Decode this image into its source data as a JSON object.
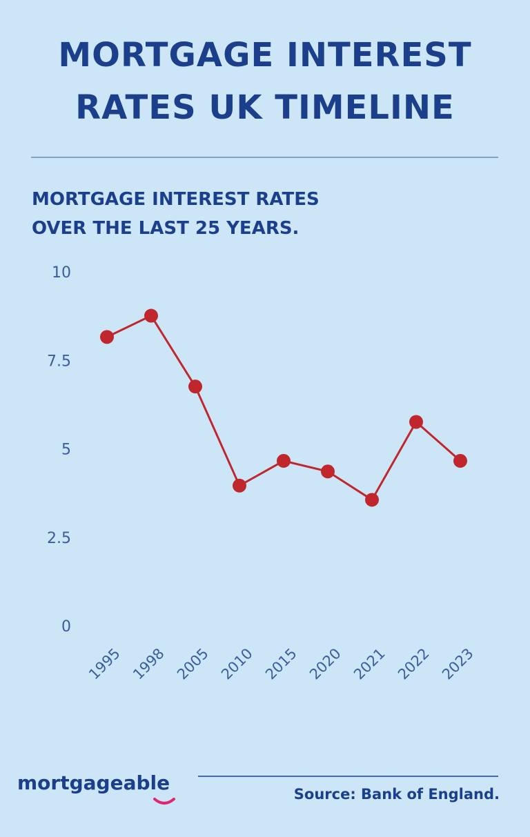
{
  "header": {
    "title": "MORTGAGE INTEREST RATES UK TIMELINE"
  },
  "chart_data": {
    "type": "line",
    "title": "MORTGAGE INTEREST RATES OVER THE LAST 25 YEARS.",
    "categories": [
      "1995",
      "1998",
      "2005",
      "2010",
      "2015",
      "2020",
      "2021",
      "2022",
      "2023"
    ],
    "values": [
      8.2,
      8.8,
      6.8,
      4.0,
      4.7,
      4.4,
      3.6,
      5.8,
      4.7
    ],
    "color": "#c0272d",
    "ylim": [
      0,
      10
    ],
    "yticks": [
      0,
      2.5,
      5,
      7.5,
      10
    ],
    "grid": false
  },
  "footer": {
    "logo": "mortgageable",
    "source": "Source: Bank of England."
  }
}
